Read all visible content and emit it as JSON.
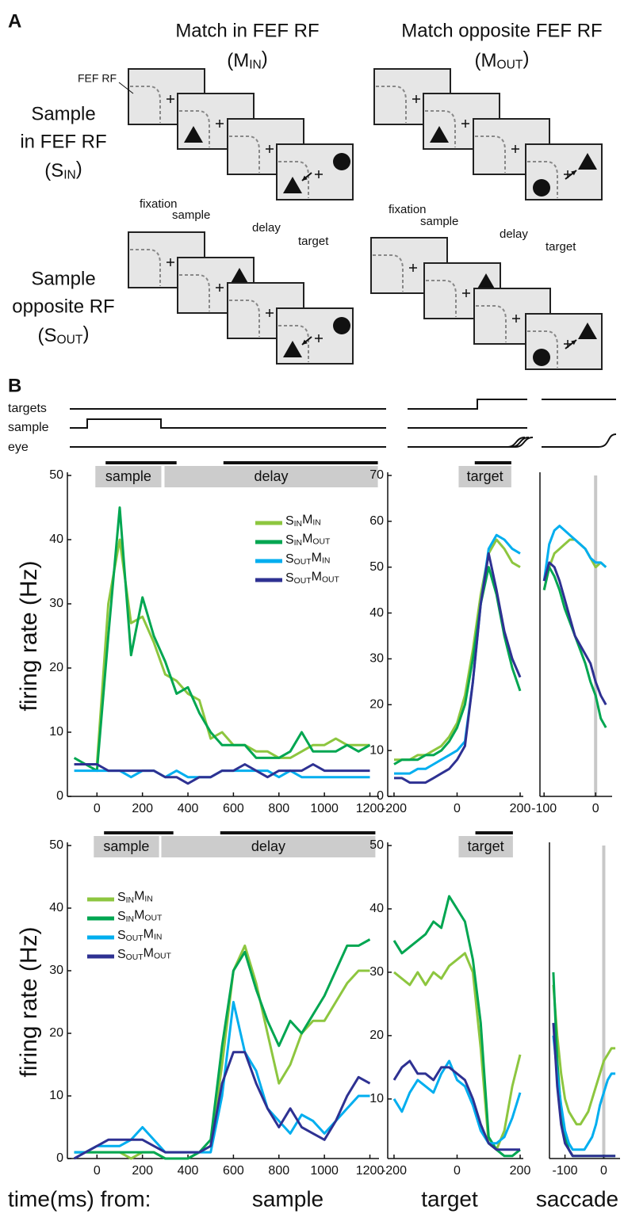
{
  "panel_a": {
    "label": "A",
    "columns": [
      {
        "title": "Match in FEF RF",
        "abbr": "(MIN)"
      },
      {
        "title": "Match opposite FEF RF",
        "abbr": "(MOUT)"
      }
    ],
    "rows": [
      {
        "title_lines": [
          "Sample",
          "in FEF RF"
        ],
        "abbr": "(SIN)"
      },
      {
        "title_lines": [
          "Sample",
          "opposite RF"
        ],
        "abbr": "(SOUT)"
      }
    ],
    "rf_label": "FEF RF",
    "epochs": [
      "fixation",
      "sample",
      "delay",
      "target"
    ]
  },
  "panel_b": {
    "label": "B",
    "trace_labels": [
      "targets",
      "sample",
      "eye"
    ],
    "footer": "time(ms) from:"
  },
  "chart_data": [
    {
      "type": "line",
      "ylabel": "firing rate (Hz)",
      "legend": "upper right",
      "x": [
        -100,
        -50,
        0,
        50,
        100,
        150,
        200,
        250,
        300,
        350,
        400,
        450,
        500,
        550,
        600,
        650,
        700,
        750,
        800,
        850,
        900,
        950,
        1000,
        1050,
        1100,
        1150,
        1200
      ],
      "xlim": [
        -130,
        1240
      ],
      "xticks": [
        0,
        200,
        400,
        600,
        800,
        1000,
        1200
      ],
      "ylim": [
        0,
        50
      ],
      "yticks": [
        0,
        10,
        20,
        30,
        40,
        50
      ],
      "epochs": [
        {
          "label": "sample",
          "box": [
            -7,
            283
          ],
          "bar": [
            38,
            350
          ]
        },
        {
          "label": "delay",
          "box": [
            297,
            1235
          ],
          "bar": [
            556,
            1235
          ]
        }
      ],
      "series": [
        {
          "name": "SINMIN",
          "color": "#8dc63f",
          "values": [
            5,
            5,
            5,
            30,
            40,
            27,
            28,
            24,
            19,
            18,
            16,
            15,
            9,
            10,
            8,
            8,
            7,
            7,
            6,
            6,
            7,
            8,
            8,
            9,
            8,
            8,
            8
          ]
        },
        {
          "name": "SINMOUT",
          "color": "#00a651",
          "values": [
            6,
            5,
            4,
            25,
            45,
            22,
            31,
            25,
            21,
            16,
            17,
            13,
            10,
            8,
            8,
            8,
            6,
            6,
            6,
            7,
            10,
            7,
            7,
            7,
            8,
            7,
            8
          ]
        },
        {
          "name": "SOUTMIN",
          "color": "#00aeef",
          "values": [
            4,
            4,
            4,
            4,
            4,
            3,
            4,
            4,
            3,
            4,
            3,
            3,
            3,
            4,
            4,
            4,
            4,
            4,
            3,
            4,
            3,
            3,
            3,
            3,
            3,
            3,
            3
          ]
        },
        {
          "name": "SOUTMOUT",
          "color": "#2e3192",
          "values": [
            5,
            5,
            5,
            4,
            4,
            4,
            4,
            4,
            3,
            3,
            2,
            3,
            3,
            4,
            4,
            5,
            4,
            3,
            4,
            4,
            4,
            5,
            4,
            4,
            4,
            4,
            4
          ]
        }
      ]
    },
    {
      "type": "line",
      "x": [
        -200,
        -175,
        -150,
        -125,
        -100,
        -75,
        -50,
        -25,
        0,
        25,
        50,
        75,
        100,
        125,
        150,
        175,
        200
      ],
      "xlim": [
        -220,
        210
      ],
      "xticks": [
        -200,
        0,
        200
      ],
      "ylim": [
        0,
        70
      ],
      "yticks": [
        0,
        10,
        20,
        30,
        40,
        50,
        60,
        70
      ],
      "epochs": [
        {
          "label": "target",
          "box": [
            5,
            172
          ],
          "bar": [
            56,
            172
          ]
        }
      ],
      "series": [
        {
          "color": "#8dc63f",
          "values": [
            8,
            8,
            8,
            9,
            9,
            10,
            11,
            13,
            16,
            22,
            32,
            44,
            53,
            56,
            54,
            51,
            50
          ]
        },
        {
          "color": "#00a651",
          "values": [
            7,
            8,
            8,
            8,
            9,
            9,
            10,
            12,
            15,
            20,
            30,
            42,
            50,
            44,
            35,
            28,
            23
          ]
        },
        {
          "color": "#00aeef",
          "values": [
            5,
            5,
            5,
            6,
            6,
            7,
            8,
            9,
            10,
            12,
            25,
            42,
            54,
            57,
            56,
            54,
            53
          ]
        },
        {
          "color": "#2e3192",
          "values": [
            4,
            4,
            3,
            3,
            3,
            4,
            5,
            6,
            8,
            11,
            25,
            42,
            53,
            45,
            36,
            30,
            26
          ]
        }
      ]
    },
    {
      "type": "line",
      "vline": 0,
      "x": [
        -100,
        -90,
        -80,
        -70,
        -60,
        -50,
        -40,
        -30,
        -20,
        -10,
        0,
        10,
        20
      ],
      "xlim": [
        -108,
        32
      ],
      "xticks": [
        -100,
        0
      ],
      "ylim": [
        0,
        70
      ],
      "series": [
        {
          "color": "#8dc63f",
          "values": [
            45,
            50,
            53,
            54,
            55,
            56,
            56,
            55,
            54,
            52,
            50,
            51,
            50
          ]
        },
        {
          "color": "#00a651",
          "values": [
            45,
            50,
            48,
            45,
            41,
            38,
            35,
            32,
            29,
            25,
            22,
            17,
            15
          ]
        },
        {
          "color": "#00aeef",
          "values": [
            47,
            55,
            58,
            59,
            58,
            57,
            56,
            55,
            54,
            52,
            51,
            51,
            50
          ]
        },
        {
          "color": "#2e3192",
          "values": [
            47,
            51,
            50,
            47,
            43,
            39,
            35,
            33,
            31,
            29,
            25,
            22,
            20
          ]
        }
      ]
    },
    {
      "type": "line",
      "ylabel": "firing rate (Hz)",
      "legend": "upper left",
      "xlabel": "sample",
      "x": [
        -100,
        -50,
        0,
        50,
        100,
        150,
        200,
        250,
        300,
        350,
        400,
        450,
        500,
        550,
        600,
        650,
        700,
        750,
        800,
        850,
        900,
        950,
        1000,
        1050,
        1100,
        1150,
        1200
      ],
      "xlim": [
        -130,
        1240
      ],
      "xticks": [
        0,
        200,
        400,
        600,
        800,
        1000,
        1200
      ],
      "ylim": [
        0,
        50
      ],
      "yticks": [
        0,
        10,
        20,
        30,
        40,
        50
      ],
      "epochs": [
        {
          "label": "sample",
          "box": [
            -14,
            273
          ],
          "bar": [
            31,
            336
          ]
        },
        {
          "label": "delay",
          "box": [
            283,
            1224
          ],
          "bar": [
            542,
            1224
          ]
        }
      ],
      "series": [
        {
          "name": "SINMIN",
          "color": "#8dc63f",
          "values": [
            1,
            1,
            1,
            1,
            1,
            0,
            1,
            1,
            0,
            0,
            0,
            1,
            2,
            15,
            30,
            34,
            28,
            20,
            12,
            15,
            20,
            22,
            22,
            25,
            28,
            30,
            30
          ]
        },
        {
          "name": "SINMOUT",
          "color": "#00a651",
          "values": [
            1,
            1,
            1,
            1,
            1,
            1,
            1,
            1,
            0,
            0,
            0,
            1,
            3,
            18,
            30,
            33,
            27,
            22,
            18,
            22,
            20,
            23,
            26,
            30,
            34,
            34,
            35
          ]
        },
        {
          "name": "SOUTMIN",
          "color": "#00aeef",
          "values": [
            1,
            1,
            2,
            2,
            2,
            3,
            5,
            3,
            1,
            1,
            1,
            1,
            1,
            10,
            25,
            17,
            14,
            8,
            6,
            4,
            7,
            6,
            4,
            6,
            8,
            10,
            10
          ]
        },
        {
          "name": "SOUTMOUT",
          "color": "#2e3192",
          "values": [
            0,
            1,
            2,
            3,
            3,
            3,
            3,
            2,
            1,
            1,
            1,
            1,
            2,
            12,
            17,
            17,
            12,
            8,
            5,
            8,
            5,
            4,
            3,
            6,
            10,
            13,
            12
          ]
        }
      ]
    },
    {
      "type": "line",
      "xlabel": "target",
      "x": [
        -200,
        -175,
        -150,
        -125,
        -100,
        -75,
        -50,
        -25,
        0,
        25,
        50,
        75,
        100,
        125,
        150,
        175,
        200
      ],
      "xlim": [
        -220,
        210
      ],
      "xticks": [
        -200,
        0,
        200
      ],
      "ylim": [
        0.6,
        50
      ],
      "yticks": [
        10,
        20,
        30,
        40,
        50
      ],
      "epochs": [
        {
          "label": "target",
          "box": [
            5,
            177
          ],
          "bar": [
            58,
            177
          ]
        }
      ],
      "series": [
        {
          "color": "#8dc63f",
          "values": [
            30,
            29,
            28,
            30,
            28,
            30,
            29,
            31,
            32,
            33,
            30,
            18,
            3,
            2,
            5,
            12,
            17
          ]
        },
        {
          "color": "#00a651",
          "values": [
            35,
            33,
            34,
            35,
            36,
            38,
            37,
            42,
            40,
            38,
            32,
            22,
            4,
            2,
            1,
            1,
            2
          ]
        },
        {
          "color": "#00aeef",
          "values": [
            10,
            8,
            11,
            13,
            12,
            11,
            14,
            16,
            13,
            12,
            9,
            5,
            3,
            3,
            4,
            7,
            11
          ]
        },
        {
          "color": "#2e3192",
          "values": [
            13,
            15,
            16,
            14,
            14,
            13,
            15,
            15,
            14,
            13,
            10,
            6,
            3,
            2,
            2,
            2,
            2
          ]
        }
      ]
    },
    {
      "type": "line",
      "xlabel": "saccade",
      "vline": 0,
      "x": [
        -130,
        -120,
        -110,
        -100,
        -90,
        -80,
        -70,
        -60,
        -50,
        -40,
        -30,
        -20,
        -10,
        0,
        10,
        20,
        30
      ],
      "xlim": [
        -140,
        42
      ],
      "xticks": [
        -100,
        0
      ],
      "ylim": [
        0.6,
        50
      ],
      "series": [
        {
          "color": "#8dc63f",
          "values": [
            28,
            20,
            14,
            10,
            8,
            7,
            6,
            6,
            7,
            8,
            10,
            12,
            14,
            16,
            17,
            18,
            18
          ]
        },
        {
          "color": "#00a651",
          "values": [
            30,
            16,
            8,
            4,
            2,
            1,
            1,
            1,
            1,
            1,
            1,
            1,
            1,
            1,
            1,
            1,
            1
          ]
        },
        {
          "color": "#00aeef",
          "values": [
            20,
            14,
            9,
            5,
            3,
            2,
            2,
            2,
            2,
            3,
            4,
            6,
            9,
            11,
            13,
            14,
            14
          ]
        },
        {
          "color": "#2e3192",
          "values": [
            22,
            12,
            6,
            3,
            2,
            1,
            1,
            1,
            1,
            1,
            1,
            1,
            1,
            1,
            1,
            1,
            1
          ]
        }
      ]
    }
  ]
}
